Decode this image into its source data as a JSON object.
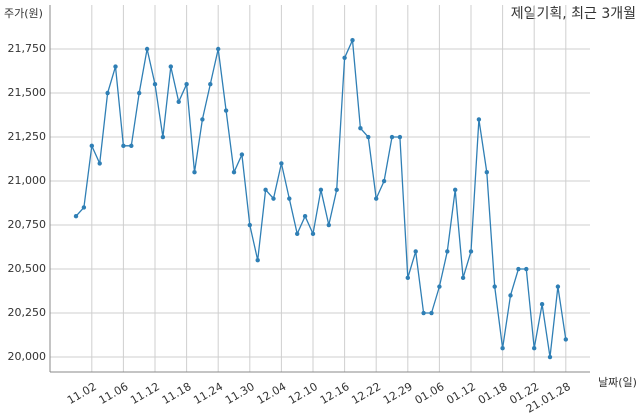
{
  "chart_data": {
    "type": "line",
    "title": "제일기획, 최근 3개월",
    "y_label": "주가(원)",
    "x_label": "날짜(일)",
    "categories": [
      null,
      null,
      "11.02",
      null,
      null,
      null,
      "11.06",
      null,
      null,
      null,
      "11.12",
      null,
      null,
      null,
      "11.18",
      null,
      null,
      null,
      "11.24",
      null,
      null,
      null,
      "11.30",
      null,
      null,
      null,
      "12.04",
      null,
      null,
      null,
      "12.10",
      null,
      null,
      null,
      "12.16",
      null,
      null,
      null,
      "12.22",
      null,
      null,
      null,
      "12.29",
      null,
      null,
      null,
      "01.06",
      null,
      null,
      null,
      "01.12",
      null,
      null,
      null,
      "01.18",
      null,
      null,
      null,
      "01.22",
      null,
      null,
      null,
      "21.01.28"
    ],
    "series": [
      {
        "name": "제일기획",
        "color": "#2f7fb5",
        "values": [
          20800,
          20850,
          21200,
          21100,
          21500,
          21650,
          21200,
          21200,
          21500,
          21750,
          21550,
          21250,
          21650,
          21450,
          21550,
          21050,
          21350,
          21550,
          21750,
          21400,
          21050,
          21150,
          20750,
          20550,
          20950,
          20900,
          21100,
          20900,
          20700,
          20800,
          20700,
          20950,
          20750,
          20950,
          21700,
          21800,
          21300,
          21250,
          20900,
          21000,
          21250,
          21250,
          20450,
          20600,
          20250,
          20250,
          20400,
          20600,
          20950,
          20450,
          20600,
          21350,
          21050,
          20400,
          20050,
          20350,
          20500,
          20500,
          20050,
          20300,
          20000,
          20400,
          20100
        ]
      }
    ],
    "ylim": [
      19915,
      22000
    ],
    "yticks": [
      {
        "value": 20000,
        "label": "20,000"
      },
      {
        "value": 20250,
        "label": "20,250"
      },
      {
        "value": 20500,
        "label": "20,500"
      },
      {
        "value": 20750,
        "label": "20,750"
      },
      {
        "value": 21000,
        "label": "21,000"
      },
      {
        "value": 21250,
        "label": "21,250"
      },
      {
        "value": 21500,
        "label": "21,500"
      },
      {
        "value": 21750,
        "label": "21,750"
      }
    ],
    "grid": true
  }
}
